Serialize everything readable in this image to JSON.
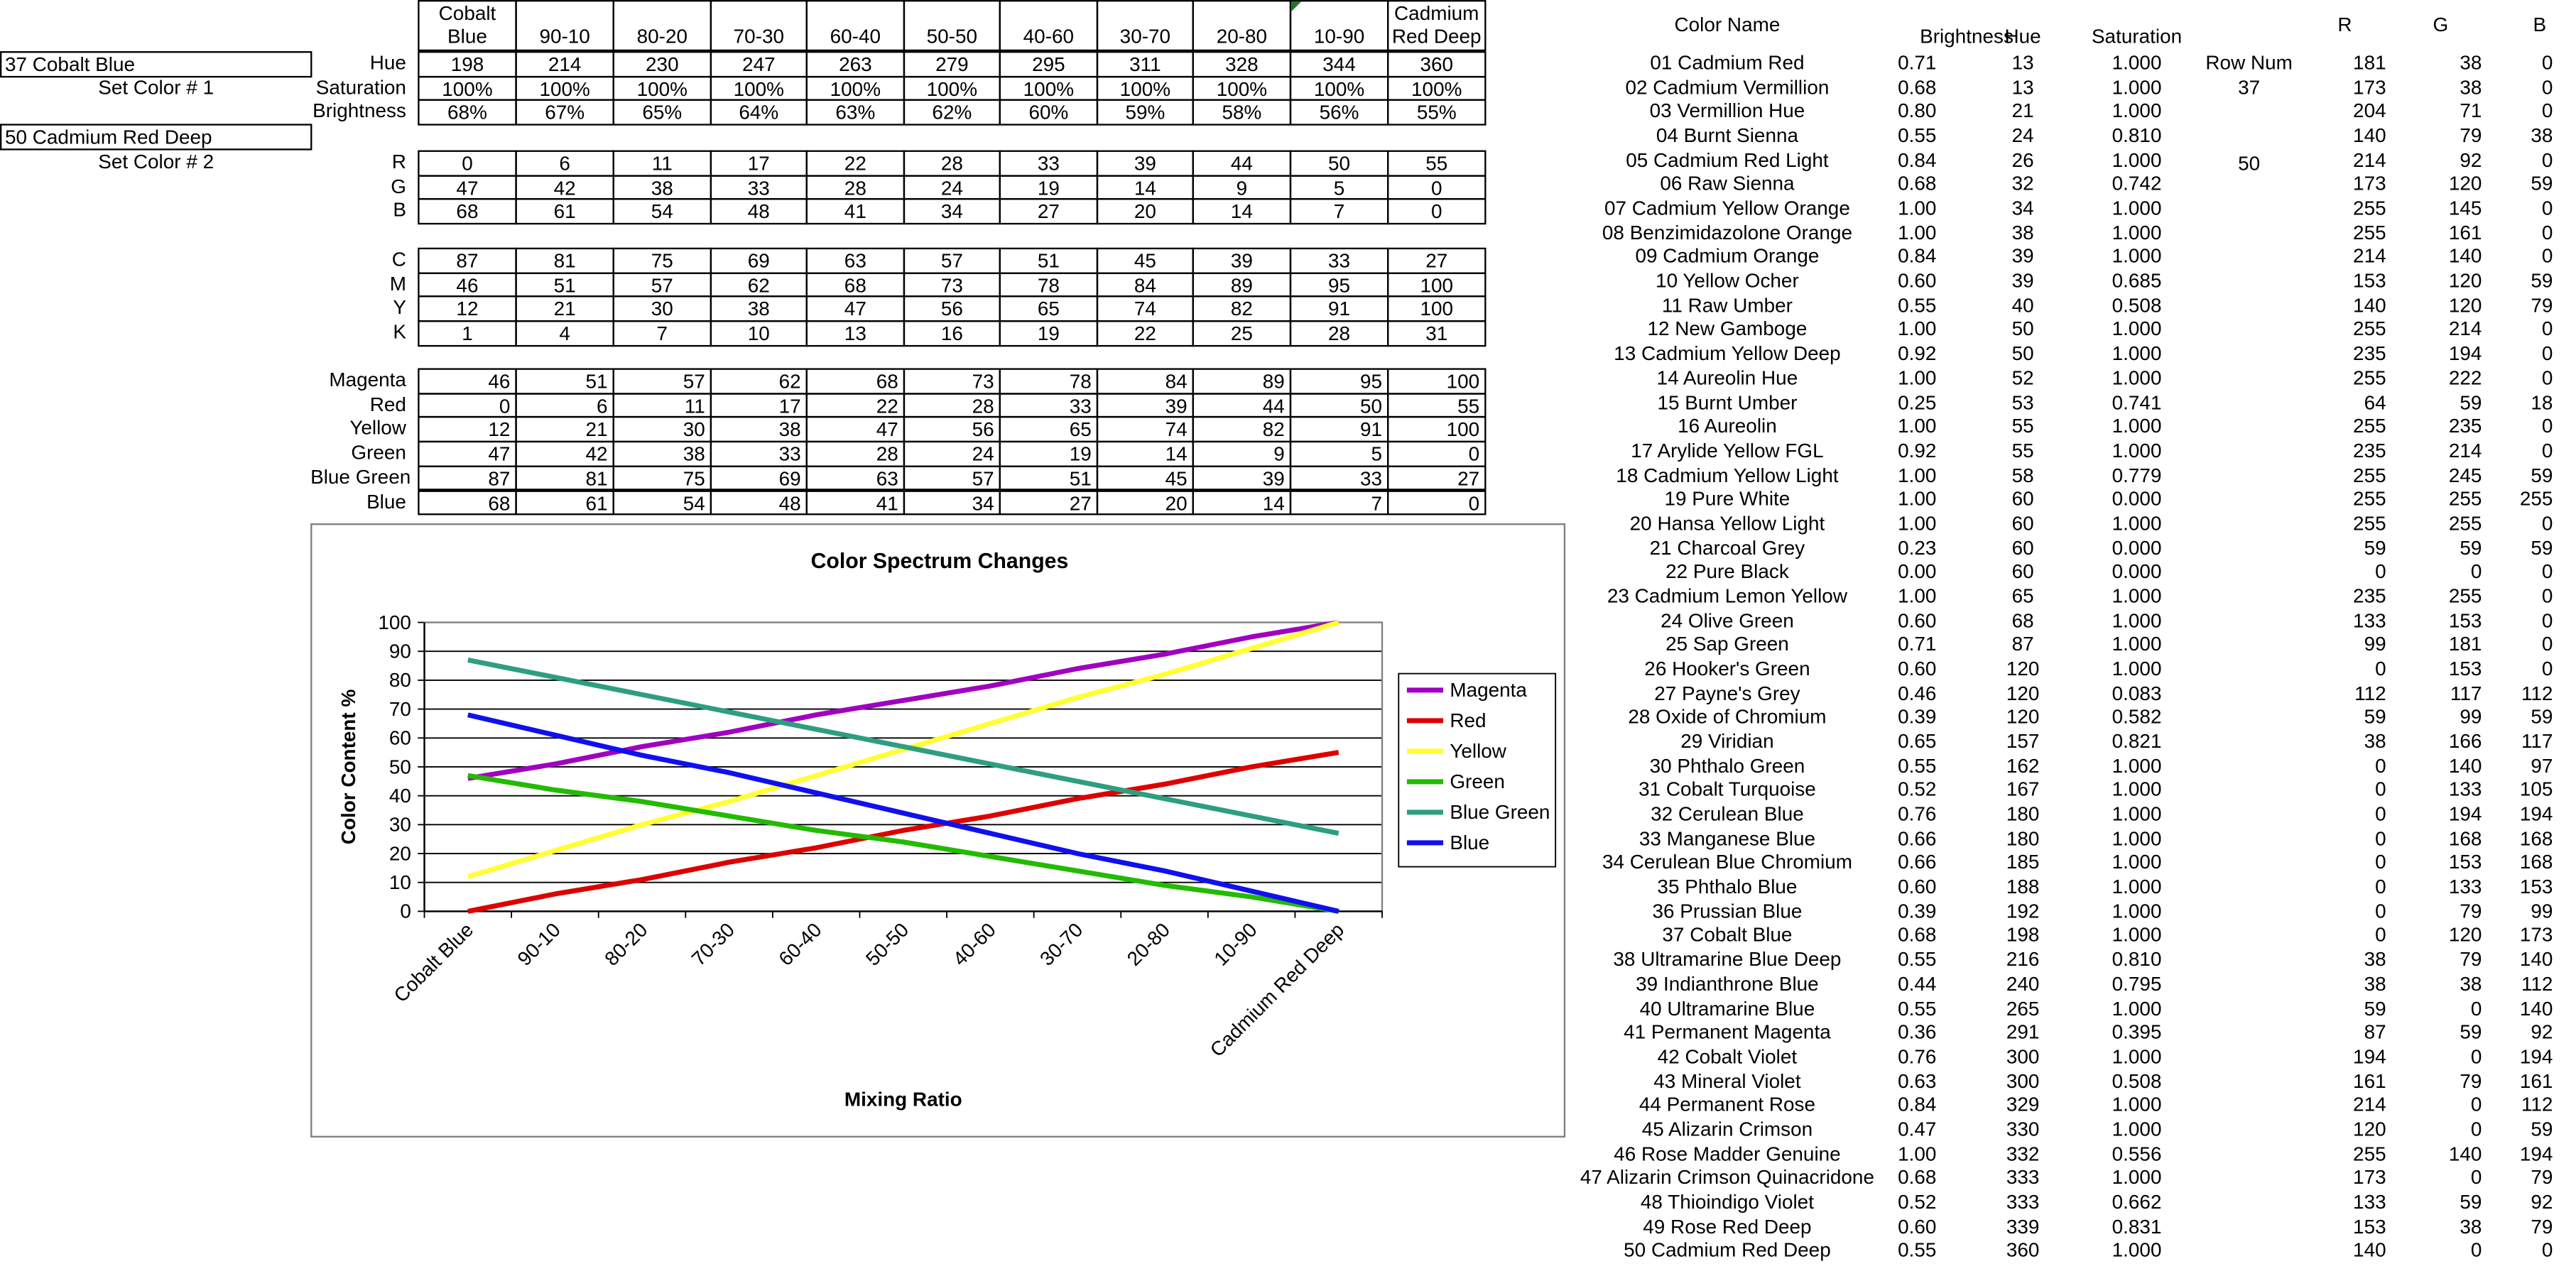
{
  "left_panel": {
    "color1_name": "37 Cobalt Blue",
    "set_color1_label": "Set Color # 1",
    "color2_name": "50 Cadmium Red Deep",
    "set_color2_label": "Set Color # 2"
  },
  "mix_table": {
    "columns": [
      "Cobalt Blue",
      "90-10",
      "80-20",
      "70-30",
      "60-40",
      "50-50",
      "40-60",
      "30-70",
      "20-80",
      "10-90",
      "Cadmium Red Deep"
    ],
    "hsb_rows": [
      {
        "label": "Hue",
        "values": [
          "198",
          "214",
          "230",
          "247",
          "263",
          "279",
          "295",
          "311",
          "328",
          "344",
          "360"
        ]
      },
      {
        "label": "Saturation",
        "values": [
          "100%",
          "100%",
          "100%",
          "100%",
          "100%",
          "100%",
          "100%",
          "100%",
          "100%",
          "100%",
          "100%"
        ]
      },
      {
        "label": "Brightness",
        "values": [
          "68%",
          "67%",
          "65%",
          "64%",
          "63%",
          "62%",
          "60%",
          "59%",
          "58%",
          "56%",
          "55%"
        ]
      }
    ],
    "rgb_rows": [
      {
        "label": "R",
        "values": [
          "0",
          "6",
          "11",
          "17",
          "22",
          "28",
          "33",
          "39",
          "44",
          "50",
          "55"
        ]
      },
      {
        "label": "G",
        "values": [
          "47",
          "42",
          "38",
          "33",
          "28",
          "24",
          "19",
          "14",
          "9",
          "5",
          "0"
        ]
      },
      {
        "label": "B",
        "values": [
          "68",
          "61",
          "54",
          "48",
          "41",
          "34",
          "27",
          "20",
          "14",
          "7",
          "0"
        ]
      }
    ],
    "cmyk_rows": [
      {
        "label": "C",
        "values": [
          "87",
          "81",
          "75",
          "69",
          "63",
          "57",
          "51",
          "45",
          "39",
          "33",
          "27"
        ]
      },
      {
        "label": "M",
        "values": [
          "46",
          "51",
          "57",
          "62",
          "68",
          "73",
          "78",
          "84",
          "89",
          "95",
          "100"
        ]
      },
      {
        "label": "Y",
        "values": [
          "12",
          "21",
          "30",
          "38",
          "47",
          "56",
          "65",
          "74",
          "82",
          "91",
          "100"
        ]
      },
      {
        "label": "K",
        "values": [
          "1",
          "4",
          "7",
          "10",
          "13",
          "16",
          "19",
          "22",
          "25",
          "28",
          "31"
        ]
      }
    ],
    "pigment_rows": [
      {
        "label": "Magenta",
        "values": [
          "46",
          "51",
          "57",
          "62",
          "68",
          "73",
          "78",
          "84",
          "89",
          "95",
          "100"
        ]
      },
      {
        "label": "Red",
        "values": [
          "0",
          "6",
          "11",
          "17",
          "22",
          "28",
          "33",
          "39",
          "44",
          "50",
          "55"
        ]
      },
      {
        "label": "Yellow",
        "values": [
          "12",
          "21",
          "30",
          "38",
          "47",
          "56",
          "65",
          "74",
          "82",
          "91",
          "100"
        ]
      },
      {
        "label": "Green",
        "values": [
          "47",
          "42",
          "38",
          "33",
          "28",
          "24",
          "19",
          "14",
          "9",
          "5",
          "0"
        ]
      },
      {
        "label": "Blue Green",
        "values": [
          "87",
          "81",
          "75",
          "69",
          "63",
          "57",
          "51",
          "45",
          "39",
          "33",
          "27"
        ]
      },
      {
        "label": "Blue",
        "values": [
          "68",
          "61",
          "54",
          "48",
          "41",
          "34",
          "27",
          "20",
          "14",
          "7",
          "0"
        ]
      }
    ]
  },
  "chart_data": {
    "type": "line",
    "title": "Color Spectrum Changes",
    "xlabel": "Mixing Ratio",
    "ylabel": "Color Content %",
    "ylim": [
      0,
      100
    ],
    "yticks": [
      "0",
      "10",
      "20",
      "30",
      "40",
      "50",
      "60",
      "70",
      "80",
      "90",
      "100"
    ],
    "categories": [
      "Cobalt Blue",
      "90-10",
      "80-20",
      "70-30",
      "60-40",
      "50-50",
      "40-60",
      "30-70",
      "20-80",
      "10-90",
      "Cadmium Red Deep"
    ],
    "grid": true,
    "legend_position": "right",
    "series": [
      {
        "name": "Magenta",
        "color": "#a000c0",
        "values": [
          46,
          51,
          57,
          62,
          68,
          73,
          78,
          84,
          89,
          95,
          100
        ]
      },
      {
        "name": "Red",
        "color": "#dd0000",
        "values": [
          0,
          6,
          11,
          17,
          22,
          28,
          33,
          39,
          44,
          50,
          55
        ]
      },
      {
        "name": "Yellow",
        "color": "#ffff33",
        "values": [
          12,
          21,
          30,
          38,
          47,
          56,
          65,
          74,
          82,
          91,
          100
        ]
      },
      {
        "name": "Green",
        "color": "#22bb00",
        "values": [
          47,
          42,
          38,
          33,
          28,
          24,
          19,
          14,
          9,
          5,
          0
        ]
      },
      {
        "name": "Blue Green",
        "color": "#2e9e80",
        "values": [
          87,
          81,
          75,
          69,
          63,
          57,
          51,
          45,
          39,
          33,
          27
        ]
      },
      {
        "name": "Blue",
        "color": "#1010ee",
        "values": [
          68,
          61,
          54,
          48,
          41,
          34,
          27,
          20,
          14,
          7,
          0
        ]
      }
    ]
  },
  "color_list": {
    "headers": {
      "name": "Color Name",
      "brightness": "Brightness",
      "hue": "Hue",
      "saturation": "Saturation",
      "r": "R",
      "g": "G",
      "b": "B"
    },
    "row_num_label": "Row Num",
    "row_num_values": [
      "37",
      "50"
    ],
    "rows": [
      {
        "name": "01 Cadmium Red",
        "brightness": "0.71",
        "hue": "13",
        "saturation": "1.000",
        "r": "181",
        "g": "38",
        "b": "0"
      },
      {
        "name": "02 Cadmium Vermillion",
        "brightness": "0.68",
        "hue": "13",
        "saturation": "1.000",
        "r": "173",
        "g": "38",
        "b": "0"
      },
      {
        "name": "03 Vermillion Hue",
        "brightness": "0.80",
        "hue": "21",
        "saturation": "1.000",
        "r": "204",
        "g": "71",
        "b": "0"
      },
      {
        "name": "04 Burnt Sienna",
        "brightness": "0.55",
        "hue": "24",
        "saturation": "0.810",
        "r": "140",
        "g": "79",
        "b": "38"
      },
      {
        "name": "05 Cadmium Red Light",
        "brightness": "0.84",
        "hue": "26",
        "saturation": "1.000",
        "r": "214",
        "g": "92",
        "b": "0"
      },
      {
        "name": "06 Raw Sienna",
        "brightness": "0.68",
        "hue": "32",
        "saturation": "0.742",
        "r": "173",
        "g": "120",
        "b": "59"
      },
      {
        "name": "07 Cadmium Yellow Orange",
        "brightness": "1.00",
        "hue": "34",
        "saturation": "1.000",
        "r": "255",
        "g": "145",
        "b": "0"
      },
      {
        "name": "08 Benzimidazolone Orange",
        "brightness": "1.00",
        "hue": "38",
        "saturation": "1.000",
        "r": "255",
        "g": "161",
        "b": "0"
      },
      {
        "name": "09 Cadmium Orange",
        "brightness": "0.84",
        "hue": "39",
        "saturation": "1.000",
        "r": "214",
        "g": "140",
        "b": "0"
      },
      {
        "name": "10 Yellow Ocher",
        "brightness": "0.60",
        "hue": "39",
        "saturation": "0.685",
        "r": "153",
        "g": "120",
        "b": "59"
      },
      {
        "name": "11 Raw Umber",
        "brightness": "0.55",
        "hue": "40",
        "saturation": "0.508",
        "r": "140",
        "g": "120",
        "b": "79"
      },
      {
        "name": "12 New Gamboge",
        "brightness": "1.00",
        "hue": "50",
        "saturation": "1.000",
        "r": "255",
        "g": "214",
        "b": "0"
      },
      {
        "name": "13 Cadmium Yellow Deep",
        "brightness": "0.92",
        "hue": "50",
        "saturation": "1.000",
        "r": "235",
        "g": "194",
        "b": "0"
      },
      {
        "name": "14 Aureolin Hue",
        "brightness": "1.00",
        "hue": "52",
        "saturation": "1.000",
        "r": "255",
        "g": "222",
        "b": "0"
      },
      {
        "name": "15 Burnt Umber",
        "brightness": "0.25",
        "hue": "53",
        "saturation": "0.741",
        "r": "64",
        "g": "59",
        "b": "18"
      },
      {
        "name": "16 Aureolin",
        "brightness": "1.00",
        "hue": "55",
        "saturation": "1.000",
        "r": "255",
        "g": "235",
        "b": "0"
      },
      {
        "name": "17 Arylide Yellow FGL",
        "brightness": "0.92",
        "hue": "55",
        "saturation": "1.000",
        "r": "235",
        "g": "214",
        "b": "0"
      },
      {
        "name": "18 Cadmium Yellow Light",
        "brightness": "1.00",
        "hue": "58",
        "saturation": "0.779",
        "r": "255",
        "g": "245",
        "b": "59"
      },
      {
        "name": "19 Pure White",
        "brightness": "1.00",
        "hue": "60",
        "saturation": "0.000",
        "r": "255",
        "g": "255",
        "b": "255"
      },
      {
        "name": "20 Hansa Yellow Light",
        "brightness": "1.00",
        "hue": "60",
        "saturation": "1.000",
        "r": "255",
        "g": "255",
        "b": "0"
      },
      {
        "name": "21 Charcoal Grey",
        "brightness": "0.23",
        "hue": "60",
        "saturation": "0.000",
        "r": "59",
        "g": "59",
        "b": "59"
      },
      {
        "name": "22 Pure Black",
        "brightness": "0.00",
        "hue": "60",
        "saturation": "0.000",
        "r": "0",
        "g": "0",
        "b": "0"
      },
      {
        "name": "23 Cadmium Lemon Yellow",
        "brightness": "1.00",
        "hue": "65",
        "saturation": "1.000",
        "r": "235",
        "g": "255",
        "b": "0"
      },
      {
        "name": "24 Olive Green",
        "brightness": "0.60",
        "hue": "68",
        "saturation": "1.000",
        "r": "133",
        "g": "153",
        "b": "0"
      },
      {
        "name": "25 Sap Green",
        "brightness": "0.71",
        "hue": "87",
        "saturation": "1.000",
        "r": "99",
        "g": "181",
        "b": "0"
      },
      {
        "name": "26 Hooker's Green",
        "brightness": "0.60",
        "hue": "120",
        "saturation": "1.000",
        "r": "0",
        "g": "153",
        "b": "0"
      },
      {
        "name": "27 Payne's Grey",
        "brightness": "0.46",
        "hue": "120",
        "saturation": "0.083",
        "r": "112",
        "g": "117",
        "b": "112"
      },
      {
        "name": "28 Oxide of Chromium",
        "brightness": "0.39",
        "hue": "120",
        "saturation": "0.582",
        "r": "59",
        "g": "99",
        "b": "59"
      },
      {
        "name": "29 Viridian",
        "brightness": "0.65",
        "hue": "157",
        "saturation": "0.821",
        "r": "38",
        "g": "166",
        "b": "117"
      },
      {
        "name": "30 Phthalo Green",
        "brightness": "0.55",
        "hue": "162",
        "saturation": "1.000",
        "r": "0",
        "g": "140",
        "b": "97"
      },
      {
        "name": "31 Cobalt Turquoise",
        "brightness": "0.52",
        "hue": "167",
        "saturation": "1.000",
        "r": "0",
        "g": "133",
        "b": "105"
      },
      {
        "name": "32 Cerulean Blue",
        "brightness": "0.76",
        "hue": "180",
        "saturation": "1.000",
        "r": "0",
        "g": "194",
        "b": "194"
      },
      {
        "name": "33 Manganese Blue",
        "brightness": "0.66",
        "hue": "180",
        "saturation": "1.000",
        "r": "0",
        "g": "168",
        "b": "168"
      },
      {
        "name": "34 Cerulean Blue Chromium",
        "brightness": "0.66",
        "hue": "185",
        "saturation": "1.000",
        "r": "0",
        "g": "153",
        "b": "168"
      },
      {
        "name": "35 Phthalo Blue",
        "brightness": "0.60",
        "hue": "188",
        "saturation": "1.000",
        "r": "0",
        "g": "133",
        "b": "153"
      },
      {
        "name": "36 Prussian Blue",
        "brightness": "0.39",
        "hue": "192",
        "saturation": "1.000",
        "r": "0",
        "g": "79",
        "b": "99"
      },
      {
        "name": "37 Cobalt Blue",
        "brightness": "0.68",
        "hue": "198",
        "saturation": "1.000",
        "r": "0",
        "g": "120",
        "b": "173"
      },
      {
        "name": "38 Ultramarine Blue Deep",
        "brightness": "0.55",
        "hue": "216",
        "saturation": "0.810",
        "r": "38",
        "g": "79",
        "b": "140"
      },
      {
        "name": "39 Indianthrone Blue",
        "brightness": "0.44",
        "hue": "240",
        "saturation": "0.795",
        "r": "38",
        "g": "38",
        "b": "112"
      },
      {
        "name": "40 Ultramarine Blue",
        "brightness": "0.55",
        "hue": "265",
        "saturation": "1.000",
        "r": "59",
        "g": "0",
        "b": "140"
      },
      {
        "name": "41 Permanent Magenta",
        "brightness": "0.36",
        "hue": "291",
        "saturation": "0.395",
        "r": "87",
        "g": "59",
        "b": "92"
      },
      {
        "name": "42 Cobalt Violet",
        "brightness": "0.76",
        "hue": "300",
        "saturation": "1.000",
        "r": "194",
        "g": "0",
        "b": "194"
      },
      {
        "name": "43 Mineral Violet",
        "brightness": "0.63",
        "hue": "300",
        "saturation": "0.508",
        "r": "161",
        "g": "79",
        "b": "161"
      },
      {
        "name": "44 Permanent Rose",
        "brightness": "0.84",
        "hue": "329",
        "saturation": "1.000",
        "r": "214",
        "g": "0",
        "b": "112"
      },
      {
        "name": "45 Alizarin Crimson",
        "brightness": "0.47",
        "hue": "330",
        "saturation": "1.000",
        "r": "120",
        "g": "0",
        "b": "59"
      },
      {
        "name": "46 Rose Madder Genuine",
        "brightness": "1.00",
        "hue": "332",
        "saturation": "0.556",
        "r": "255",
        "g": "140",
        "b": "194"
      },
      {
        "name": "47 Alizarin Crimson Quinacridone",
        "brightness": "0.68",
        "hue": "333",
        "saturation": "1.000",
        "r": "173",
        "g": "0",
        "b": "79"
      },
      {
        "name": "48 Thioindigo Violet",
        "brightness": "0.52",
        "hue": "333",
        "saturation": "0.662",
        "r": "133",
        "g": "59",
        "b": "92"
      },
      {
        "name": "49 Rose Red Deep",
        "brightness": "0.60",
        "hue": "339",
        "saturation": "0.831",
        "r": "153",
        "g": "38",
        "b": "79"
      },
      {
        "name": "50 Cadmium Red Deep",
        "brightness": "0.55",
        "hue": "360",
        "saturation": "1.000",
        "r": "140",
        "g": "0",
        "b": "0"
      }
    ]
  }
}
